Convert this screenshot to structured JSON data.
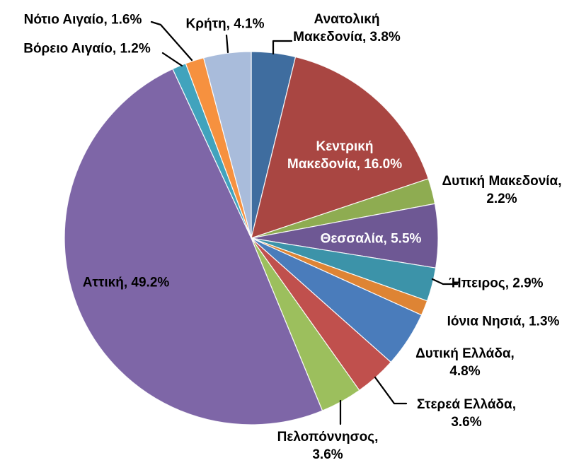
{
  "chart_data": {
    "type": "pie",
    "title": "",
    "unit": "%",
    "legend": "none",
    "background": "#FFFFFF",
    "direction": "clockwise",
    "start_angle_deg": 0,
    "total_pct": 99.8,
    "leader_line_color": "#000000",
    "points": [
      {
        "id": "anatoliki-makedonia",
        "label": "Ανατολική Μακεδονία",
        "value": 3.8,
        "display_lines": [
          "Ανατολική",
          "Μακεδονία, 3.8%"
        ],
        "color": "#3F6D9F",
        "label_position": "outside",
        "label_color": "#000000",
        "leader_line": true
      },
      {
        "id": "kentriki-makedonia",
        "label": "Κεντρική Μακεδονία",
        "value": 16.0,
        "display_lines": [
          "Κεντρική",
          "Μακεδονία, 16.0%"
        ],
        "color": "#A94642",
        "label_position": "inside",
        "label_color": "#FFFFFF",
        "leader_line": false
      },
      {
        "id": "dytiki-makedonia",
        "label": "Δυτική Μακεδονία",
        "value": 2.2,
        "display_lines": [
          "Δυτική Μακεδονία,",
          "2.2%"
        ],
        "color": "#8EAC51",
        "label_position": "outside",
        "label_color": "#000000",
        "leader_line": false
      },
      {
        "id": "thessalia",
        "label": "Θεσσαλία",
        "value": 5.5,
        "display_lines": [
          "Θεσσαλία, 5.5%"
        ],
        "color": "#6E5894",
        "label_position": "inside",
        "label_color": "#FFFFFF",
        "leader_line": false
      },
      {
        "id": "ipeiros",
        "label": "Ήπειρος",
        "value": 2.9,
        "display_lines": [
          "Ήπειρος, 2.9%"
        ],
        "color": "#3C93A9",
        "label_position": "outside",
        "label_color": "#000000",
        "leader_line": true
      },
      {
        "id": "ionia-nisia",
        "label": "Ιόνια Νησιά",
        "value": 1.3,
        "display_lines": [
          "Ιόνια Νησιά, 1.3%"
        ],
        "color": "#DE8434",
        "label_position": "outside",
        "label_color": "#000000",
        "leader_line": false
      },
      {
        "id": "dytiki-ellada",
        "label": "Δυτική Ελλάδα",
        "value": 4.8,
        "display_lines": [
          "Δυτική Ελλάδα,",
          "4.8%"
        ],
        "color": "#4A7CBB",
        "label_position": "outside",
        "label_color": "#000000",
        "leader_line": false
      },
      {
        "id": "sterea-ellada",
        "label": "Στερεά Ελλάδα",
        "value": 3.6,
        "display_lines": [
          "Στερεά Ελλάδα,",
          "3.6%"
        ],
        "color": "#C0504D",
        "label_position": "outside",
        "label_color": "#000000",
        "leader_line": true
      },
      {
        "id": "peloponnisos",
        "label": "Πελοπόννησος",
        "value": 3.6,
        "display_lines": [
          "Πελοπόννησος,",
          "3.6%"
        ],
        "color": "#9CBF5D",
        "label_position": "outside",
        "label_color": "#000000",
        "leader_line": true
      },
      {
        "id": "attiki",
        "label": "Αττική",
        "value": 49.2,
        "display_lines": [
          "Αττική, 49.2%"
        ],
        "color": "#7E66A7",
        "label_position": "inside",
        "label_color": "#000000",
        "leader_line": false
      },
      {
        "id": "voreio-aigaio",
        "label": "Βόρειο Αιγαίο",
        "value": 1.2,
        "display_lines": [
          "Βόρειο Αιγαίο, 1.2%"
        ],
        "color": "#41A3BD",
        "label_position": "outside",
        "label_color": "#000000",
        "leader_line": true
      },
      {
        "id": "notio-aigaio",
        "label": "Νότιο Αιγαίο",
        "value": 1.6,
        "display_lines": [
          "Νότιο Αιγαίο, 1.6%"
        ],
        "color": "#F6913F",
        "label_position": "outside",
        "label_color": "#000000",
        "leader_line": true
      },
      {
        "id": "kriti",
        "label": "Κρήτη",
        "value": 4.1,
        "display_lines": [
          "Κρήτη, 4.1%"
        ],
        "color": "#A9BCDB",
        "label_position": "outside",
        "label_color": "#000000",
        "leader_line": true
      }
    ]
  }
}
